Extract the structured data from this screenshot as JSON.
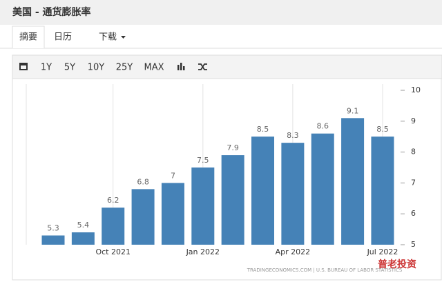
{
  "header": {
    "title": "美国 - 通货膨胀率"
  },
  "tabs": [
    "摘要",
    "日历",
    "下载"
  ],
  "toolbar": [
    "1Y",
    "5Y",
    "10Y",
    "25Y",
    "MAX"
  ],
  "chart_data": {
    "type": "bar",
    "categories": [
      null,
      null,
      "Oct 2021",
      null,
      null,
      "Jan 2022",
      null,
      null,
      "Apr 2022",
      null,
      null,
      "Jul 2022"
    ],
    "values": [
      5.3,
      5.4,
      6.2,
      6.8,
      7,
      7.5,
      7.9,
      8.5,
      8.3,
      8.6,
      9.1,
      8.5
    ],
    "color": "#4582b7",
    "ylim": [
      5,
      10
    ],
    "yticks": [
      5,
      6,
      7,
      8,
      9,
      10
    ],
    "source": "TRADINGECONOMICS.COM | U.S. BUREAU OF LABOR STATISTICS",
    "watermark": "普老投资"
  }
}
